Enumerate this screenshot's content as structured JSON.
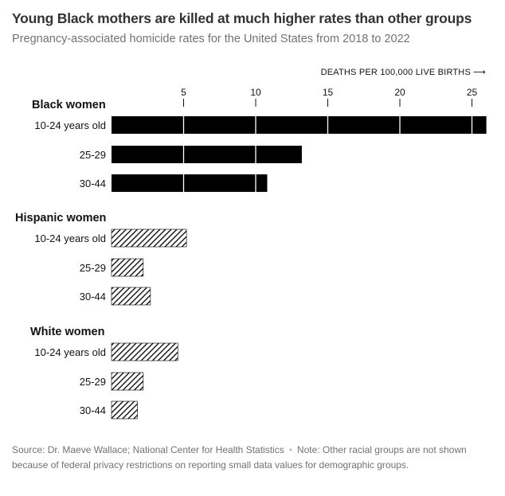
{
  "title": "Young Black mothers are killed at much higher rates than other groups",
  "subtitle": "Pregnancy-associated homicide rates for the United States from 2018 to 2022",
  "footer": {
    "source": "Source: Dr. Maeve Wallace; National Center for Health Statistics",
    "note": "Note: Other racial groups are not shown because of federal privacy restrictions on reporting small data values for demographic groups."
  },
  "chart_data": {
    "type": "bar",
    "orientation": "horizontal",
    "axis_label": "DEATHS PER 100,000 LIVE BIRTHS",
    "axis_arrow": "⟶",
    "ticks": [
      5,
      10,
      15,
      20,
      25
    ],
    "xlim": [
      0,
      26
    ],
    "groups": [
      {
        "name": "Black women",
        "fill": "solid",
        "color": "#000000",
        "categories": [
          "10-24 years old",
          "25-29",
          "30-44"
        ],
        "values": [
          26.1,
          13.2,
          10.8
        ]
      },
      {
        "name": "Hispanic women",
        "fill": "hatched",
        "color": "#000000",
        "categories": [
          "10-24 years old",
          "25-29",
          "30-44"
        ],
        "values": [
          5.2,
          2.2,
          2.7
        ]
      },
      {
        "name": "White women",
        "fill": "hatched",
        "color": "#000000",
        "categories": [
          "10-24 years old",
          "25-29",
          "30-44"
        ],
        "values": [
          4.6,
          2.2,
          1.8
        ]
      }
    ]
  }
}
